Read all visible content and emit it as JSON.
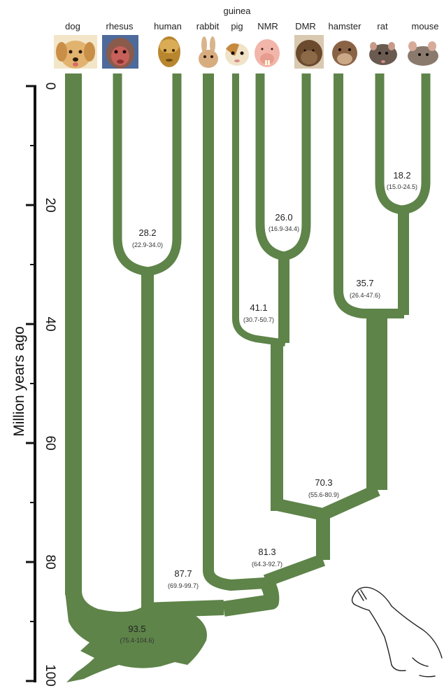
{
  "figure": {
    "y_axis_title": "Million years ago",
    "y_ticks": [
      "0",
      "20",
      "40",
      "60",
      "80",
      "100"
    ],
    "species": [
      {
        "id": "dog",
        "label": "dog"
      },
      {
        "id": "rhesus",
        "label": "rhesus"
      },
      {
        "id": "human",
        "label": "human"
      },
      {
        "id": "rabbit",
        "label": "rabbit"
      },
      {
        "id": "guinea-pig",
        "label_line1": "guinea",
        "label_line2": "pig"
      },
      {
        "id": "nmr",
        "label": "NMR"
      },
      {
        "id": "dmr",
        "label": "DMR"
      },
      {
        "id": "hamster",
        "label": "hamster"
      },
      {
        "id": "rat",
        "label": "rat"
      },
      {
        "id": "mouse",
        "label": "mouse"
      }
    ],
    "nodes": [
      {
        "id": "rat-mouse",
        "age": "18.2",
        "ci": "(15.0-24.5)"
      },
      {
        "id": "nmr-dmr",
        "age": "26.0",
        "ci": "(16.9-34.4)"
      },
      {
        "id": "rhesus-human",
        "age": "28.2",
        "ci": "(22.9-34.0)"
      },
      {
        "id": "hamster-murids",
        "age": "35.7",
        "ci": "(26.4-47.6)"
      },
      {
        "id": "guineapig-molerats",
        "age": "41.1",
        "ci": "(30.7-50.7)"
      },
      {
        "id": "hystricomorph-muroid",
        "age": "70.3",
        "ci": "(55.6-80.9)"
      },
      {
        "id": "rabbit-rodents",
        "age": "81.3",
        "ci": "(64.3-92.7)"
      },
      {
        "id": "primates-glires",
        "age": "87.7",
        "ci": "(69.9-99.7)"
      },
      {
        "id": "root",
        "age": "93.5",
        "ci": "(75.4-104.6)"
      }
    ],
    "colors": {
      "branch": "#5e8449",
      "axis": "#111111",
      "text": "#222222"
    }
  }
}
